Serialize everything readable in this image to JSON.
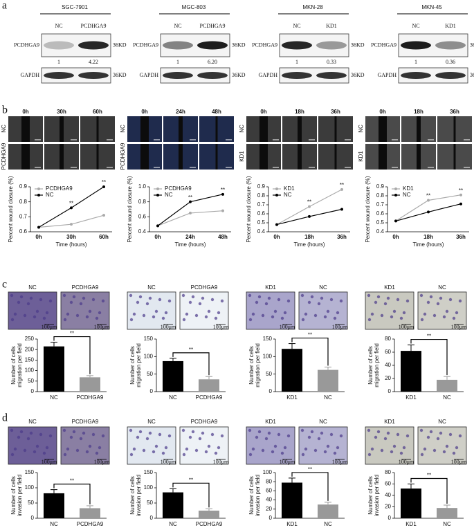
{
  "figure": {
    "letters": [
      "a",
      "b",
      "c",
      "d"
    ]
  },
  "panel_a": [
    {
      "title": "SGC-7901",
      "lanes": [
        "NC",
        "PCDHGA9"
      ],
      "rows": [
        "PCDHGA9",
        "GAPDH"
      ],
      "sizes": [
        "36KD",
        "36KD"
      ],
      "ratios": [
        "1",
        "4.22"
      ]
    },
    {
      "title": "MGC-803",
      "lanes": [
        "NC",
        "PCDHGA9"
      ],
      "rows": [
        "PCDHGA9",
        "GAPDH"
      ],
      "sizes": [
        "36KD",
        "36KD"
      ],
      "ratios": [
        "1",
        "6.20"
      ]
    },
    {
      "title": "MKN-28",
      "lanes": [
        "NC",
        "KD1"
      ],
      "rows": [
        "PCDHGA9",
        "GAPDH"
      ],
      "sizes": [
        "36KD",
        "36KD"
      ],
      "ratios": [
        "1",
        "0.33"
      ]
    },
    {
      "title": "MKN-45",
      "lanes": [
        "NC",
        "KD1"
      ],
      "rows": [
        "PCDHGA9",
        "GAPDH"
      ],
      "sizes": [
        "36KD",
        "36KD"
      ],
      "ratios": [
        "1",
        "0.36"
      ]
    }
  ],
  "panel_b": [
    {
      "times": [
        "0h",
        "30h",
        "60h"
      ],
      "rows": [
        "NC",
        "PCDHGA9"
      ]
    },
    {
      "times": [
        "0h",
        "24h",
        "48h"
      ],
      "rows": [
        "NC",
        "PCDHGA9"
      ]
    },
    {
      "times": [
        "0h",
        "18h",
        "36h"
      ],
      "rows": [
        "NC",
        "KD1"
      ]
    },
    {
      "times": [
        "0h",
        "18h",
        "36h"
      ],
      "rows": [
        "NC",
        "KD1"
      ]
    }
  ],
  "panel_c": [
    {
      "labels": [
        "NC",
        "PCDHGA9"
      ],
      "scale": "100μm"
    },
    {
      "labels": [
        "NC",
        "PCDHGA9"
      ],
      "scale": "100μm"
    },
    {
      "labels": [
        "KD1",
        "NC"
      ],
      "scale": "100μm"
    },
    {
      "labels": [
        "KD1",
        "NC"
      ],
      "scale": "100μm"
    }
  ],
  "panel_d": [
    {
      "labels": [
        "NC",
        "PCDHGA9"
      ],
      "scale": "100μm"
    },
    {
      "labels": [
        "NC",
        "PCDHGA9"
      ],
      "scale": "100μm"
    },
    {
      "labels": [
        "KD1",
        "NC"
      ],
      "scale": "100μm"
    },
    {
      "labels": [
        "KD1",
        "NC"
      ],
      "scale": "100μm"
    }
  ],
  "chart_data": [
    {
      "type": "line",
      "categories": [
        "0h",
        "30h",
        "60h"
      ],
      "series": [
        {
          "name": "PCDHGA9",
          "color": "#aaaaaa",
          "values": [
            0.63,
            0.65,
            0.71
          ]
        },
        {
          "name": "NC",
          "color": "#000000",
          "values": [
            0.63,
            0.76,
            0.9
          ]
        }
      ],
      "ylim": [
        0.6,
        0.9
      ],
      "yticks": [
        0.6,
        0.7,
        0.8,
        0.9
      ],
      "ylabel": "Percent wound closure (%)",
      "xlabel": "Time (hours)",
      "annotations": [
        {
          "x": "30h",
          "text": "**"
        },
        {
          "x": "60h",
          "text": "**"
        }
      ]
    },
    {
      "type": "line",
      "categories": [
        "0h",
        "24h",
        "48h"
      ],
      "series": [
        {
          "name": "PCDHGA9",
          "color": "#aaaaaa",
          "values": [
            0.48,
            0.65,
            0.68
          ]
        },
        {
          "name": "NC",
          "color": "#000000",
          "values": [
            0.48,
            0.8,
            0.9
          ]
        }
      ],
      "ylim": [
        0.4,
        1
      ],
      "yticks": [
        0.4,
        0.6,
        0.8,
        {
          "value": 1,
          "label": "1.0"
        }
      ],
      "ylabel": "Percent wound closure (%)",
      "xlabel": "Time (hours)",
      "annotations": [
        {
          "x": "24h",
          "text": "**"
        },
        {
          "x": "48h",
          "text": "**"
        }
      ]
    },
    {
      "type": "line",
      "categories": [
        "0h",
        "18h",
        "36h"
      ],
      "series": [
        {
          "name": "KD1",
          "color": "#aaaaaa",
          "values": [
            0.48,
            0.68,
            0.87
          ]
        },
        {
          "name": "NC",
          "color": "#000000",
          "values": [
            0.48,
            0.57,
            0.65
          ]
        }
      ],
      "ylim": [
        0.4,
        0.9
      ],
      "yticks": [
        0.4,
        0.5,
        0.6,
        0.7,
        0.8,
        0.9
      ],
      "ylabel": "Percent wound closure (%)",
      "xlabel": "Time (hours)",
      "annotations": [
        {
          "x": "18h",
          "text": "**"
        },
        {
          "x": "36h",
          "text": "**"
        }
      ]
    },
    {
      "type": "line",
      "categories": [
        "0h",
        "18h",
        "36h"
      ],
      "series": [
        {
          "name": "KD1",
          "color": "#aaaaaa",
          "values": [
            0.52,
            0.75,
            0.81
          ]
        },
        {
          "name": "NC",
          "color": "#000000",
          "values": [
            0.52,
            0.62,
            0.71
          ]
        }
      ],
      "ylim": [
        0.4,
        0.9
      ],
      "yticks": [
        0.4,
        0.5,
        0.6,
        0.7,
        0.8,
        0.9
      ],
      "ylabel": "Percent wound closure (%)",
      "xlabel": "Time (hours)",
      "annotations": [
        {
          "x": "18h",
          "text": "**"
        },
        {
          "x": "36h",
          "text": "**"
        }
      ]
    },
    {
      "type": "bar",
      "categories": [
        "NC",
        "PCDHGA9"
      ],
      "values": [
        215,
        68
      ],
      "errors": [
        20,
        8
      ],
      "colors": [
        "#000000",
        "#999999"
      ],
      "ylim": [
        0,
        250
      ],
      "yticks": [
        0,
        50,
        100,
        150,
        200,
        250
      ],
      "ylabel": [
        "Number of cells",
        "migration per field"
      ],
      "annotation": "**"
    },
    {
      "type": "bar",
      "categories": [
        "NC",
        "PCDHGA9"
      ],
      "values": [
        87,
        35
      ],
      "errors": [
        8,
        8
      ],
      "colors": [
        "#000000",
        "#999999"
      ],
      "ylim": [
        0,
        150
      ],
      "yticks": [
        0,
        50,
        100,
        150
      ],
      "ylabel": [
        "Number of cells",
        "migration per field"
      ],
      "annotation": "**"
    },
    {
      "type": "bar",
      "categories": [
        "KD1",
        "NC"
      ],
      "values": [
        122,
        62
      ],
      "errors": [
        15,
        8
      ],
      "colors": [
        "#000000",
        "#999999"
      ],
      "ylim": [
        0,
        150
      ],
      "yticks": [
        0,
        50,
        100,
        150
      ],
      "ylabel": [
        "Number of cells",
        "migration per field"
      ],
      "annotation": "**"
    },
    {
      "type": "bar",
      "categories": [
        "KD1",
        "NC"
      ],
      "values": [
        62,
        18
      ],
      "errors": [
        9,
        5
      ],
      "colors": [
        "#000000",
        "#999999"
      ],
      "ylim": [
        0,
        80
      ],
      "yticks": [
        0,
        20,
        40,
        60,
        80
      ],
      "ylabel": [
        "Number of cells",
        "migration per field"
      ],
      "annotation": "**"
    },
    {
      "type": "bar",
      "categories": [
        "NC",
        "PCDHGA9"
      ],
      "values": [
        82,
        33
      ],
      "errors": [
        12,
        8
      ],
      "colors": [
        "#000000",
        "#999999"
      ],
      "ylim": [
        0,
        150
      ],
      "yticks": [
        0,
        50,
        100,
        150
      ],
      "ylabel": [
        "Number of cells",
        "invasion per field"
      ],
      "annotation": "**"
    },
    {
      "type": "bar",
      "categories": [
        "NC",
        "PCDHGA9"
      ],
      "values": [
        85,
        25
      ],
      "errors": [
        12,
        6
      ],
      "colors": [
        "#000000",
        "#999999"
      ],
      "ylim": [
        0,
        150
      ],
      "yticks": [
        0,
        50,
        100,
        150
      ],
      "ylabel": [
        "Number of cells",
        "invasion per field"
      ],
      "annotation": "**"
    },
    {
      "type": "bar",
      "categories": [
        "KD1",
        "NC"
      ],
      "values": [
        78,
        30
      ],
      "errors": [
        10,
        5
      ],
      "colors": [
        "#000000",
        "#999999"
      ],
      "ylim": [
        0,
        100
      ],
      "yticks": [
        0,
        20,
        40,
        60,
        80,
        100
      ],
      "ylabel": [
        "Number of cells",
        "invasion per field"
      ],
      "annotation": "**"
    },
    {
      "type": "bar",
      "categories": [
        "KD1",
        "NC"
      ],
      "values": [
        52,
        18
      ],
      "errors": [
        8,
        5
      ],
      "colors": [
        "#000000",
        "#999999"
      ],
      "ylim": [
        0,
        80
      ],
      "yticks": [
        0,
        20,
        40,
        60,
        80
      ],
      "ylabel": [
        "Number of cells",
        "invasion per field"
      ],
      "annotation": "**"
    }
  ]
}
